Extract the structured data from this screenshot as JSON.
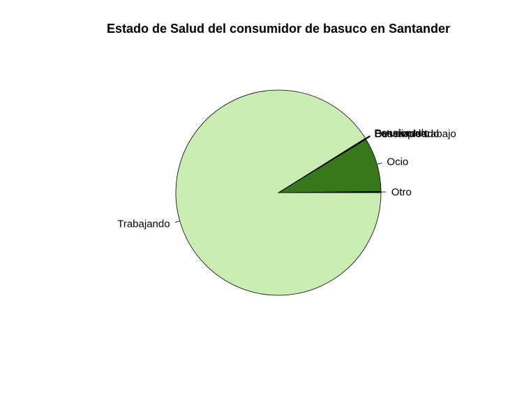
{
  "chart_data": {
    "type": "pie",
    "title": "Estado de Salud del consumidor de basuco en Santander",
    "slices": [
      {
        "label": "Otro",
        "value": 0.2,
        "color": "#000000"
      },
      {
        "label": "Ocio",
        "value": 8.5,
        "color": "#37791a"
      },
      {
        "label": "Buscando trabajo",
        "value": 0.05,
        "color": "#37791a"
      },
      {
        "label": "Desempleado",
        "value": 0.05,
        "color": "#37791a"
      },
      {
        "label": "Estudiando",
        "value": 0.05,
        "color": "#37791a"
      },
      {
        "label": "Pensionado",
        "value": 0.05,
        "color": "#37791a"
      },
      {
        "label": "Trabajando",
        "value": 91.1,
        "color": "#caedb2"
      }
    ],
    "start_angle_deg": 0,
    "direction": "counterclockwise"
  }
}
